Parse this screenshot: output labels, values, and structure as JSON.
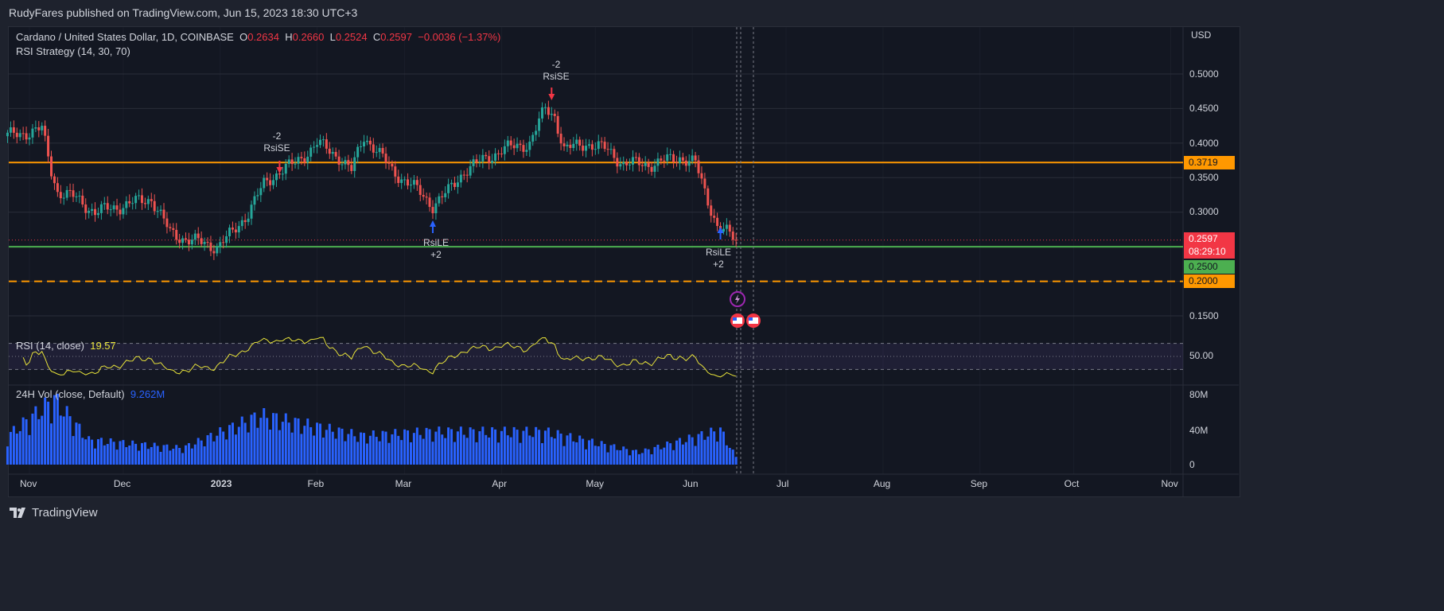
{
  "header": {
    "published": "RudyFares published on TradingView.com, Jun 15, 2023 18:30 UTC+3"
  },
  "legend": {
    "symbol": "Cardano / United States Dollar, 1D, COINBASE",
    "o_label": "O",
    "o": "0.2634",
    "h_label": "H",
    "h": "0.2660",
    "l_label": "L",
    "l": "0.2524",
    "c_label": "C",
    "c": "0.2597",
    "change": "−0.0036 (−1.37%)",
    "strategy": "RSI Strategy (14, 30, 70)"
  },
  "rsi_legend": {
    "label": "RSI (14, close)",
    "value": "19.57"
  },
  "vol_legend": {
    "label": "24H Vol (close, Default)",
    "value": "9.262M"
  },
  "axis": {
    "currency": "USD",
    "price_ticks": [
      "0.5000",
      "0.4500",
      "0.4000",
      "0.3500",
      "0.3000",
      "0.1500"
    ],
    "rsi_ticks": [
      "50.00"
    ],
    "vol_ticks": [
      "80M",
      "40M",
      "0"
    ],
    "time_ticks": [
      "Nov",
      "Dec",
      "2023",
      "Feb",
      "Mar",
      "Apr",
      "May",
      "Jun",
      "Jul",
      "Aug",
      "Sep",
      "Oct",
      "Nov"
    ]
  },
  "price_tags": {
    "resistance": "0.3719",
    "last": "0.2597",
    "countdown": "08:29:10",
    "support": "0.2500",
    "lower": "0.2000"
  },
  "signals": [
    {
      "type": "short",
      "qty": "-2",
      "label": "RsiSE",
      "date": "2023-01-20"
    },
    {
      "type": "long",
      "qty": "+2",
      "label": "RsiLE",
      "date": "2023-03-10"
    },
    {
      "type": "short",
      "qty": "-2",
      "label": "RsiSE",
      "date": "2023-04-17"
    },
    {
      "type": "long",
      "qty": "+2",
      "label": "RsiLE",
      "date": "2023-06-10"
    }
  ],
  "colors": {
    "up": "#26a69a",
    "down": "#ef5350",
    "resistance": "#ff9800",
    "support": "#4caf50",
    "rsi": "#e8e33a",
    "volume": "#2962ff",
    "accent_red": "#f23645"
  },
  "chart_data": {
    "type": "candlestick",
    "title": "Cardano / United States Dollar, 1D, COINBASE",
    "ylim": [
      0.12,
      0.53
    ],
    "horizontal_lines": [
      0.3719,
      0.25,
      0.2
    ],
    "close_keypoints": [
      [
        "2022-10-25",
        0.41
      ],
      [
        "2022-11-05",
        0.42
      ],
      [
        "2022-11-08",
        0.36
      ],
      [
        "2022-11-10",
        0.33
      ],
      [
        "2022-11-16",
        0.32
      ],
      [
        "2022-11-22",
        0.3
      ],
      [
        "2022-12-01",
        0.31
      ],
      [
        "2022-12-10",
        0.32
      ],
      [
        "2022-12-16",
        0.27
      ],
      [
        "2022-12-22",
        0.26
      ],
      [
        "2022-12-31",
        0.25
      ],
      [
        "2023-01-05",
        0.27
      ],
      [
        "2023-01-10",
        0.3
      ],
      [
        "2023-01-15",
        0.34
      ],
      [
        "2023-01-20",
        0.36
      ],
      [
        "2023-01-25",
        0.37
      ],
      [
        "2023-02-01",
        0.4
      ],
      [
        "2023-02-08",
        0.38
      ],
      [
        "2023-02-12",
        0.36
      ],
      [
        "2023-02-16",
        0.41
      ],
      [
        "2023-02-20",
        0.39
      ],
      [
        "2023-02-25",
        0.36
      ],
      [
        "2023-03-03",
        0.34
      ],
      [
        "2023-03-10",
        0.31
      ],
      [
        "2023-03-15",
        0.33
      ],
      [
        "2023-03-20",
        0.36
      ],
      [
        "2023-03-28",
        0.38
      ],
      [
        "2023-04-01",
        0.39
      ],
      [
        "2023-04-10",
        0.4
      ],
      [
        "2023-04-15",
        0.45
      ],
      [
        "2023-04-18",
        0.44
      ],
      [
        "2023-04-21",
        0.39
      ],
      [
        "2023-04-28",
        0.4
      ],
      [
        "2023-05-05",
        0.39
      ],
      [
        "2023-05-10",
        0.37
      ],
      [
        "2023-05-20",
        0.37
      ],
      [
        "2023-05-28",
        0.38
      ],
      [
        "2023-06-02",
        0.37
      ],
      [
        "2023-06-05",
        0.33
      ],
      [
        "2023-06-09",
        0.28
      ],
      [
        "2023-06-12",
        0.27
      ],
      [
        "2023-06-15",
        0.2597
      ]
    ],
    "volume_keypoints_millions": [
      [
        "2022-10-25",
        35
      ],
      [
        "2022-11-09",
        80
      ],
      [
        "2022-11-20",
        30
      ],
      [
        "2022-12-20",
        20
      ],
      [
        "2023-01-14",
        60
      ],
      [
        "2023-02-15",
        35
      ],
      [
        "2023-03-10",
        40
      ],
      [
        "2023-04-15",
        40
      ],
      [
        "2023-05-15",
        15
      ],
      [
        "2023-06-10",
        42
      ],
      [
        "2023-06-15",
        9.262
      ]
    ],
    "rsi_levels": [
      30,
      70
    ]
  }
}
